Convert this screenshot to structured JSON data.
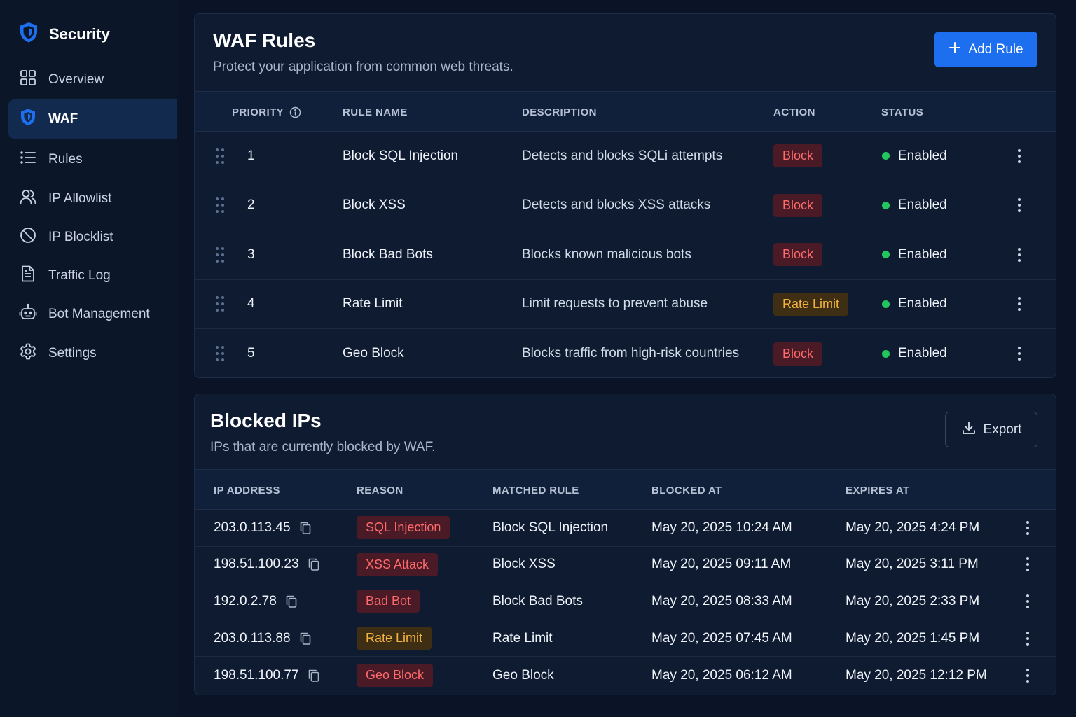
{
  "sidebar": {
    "brand": "Security",
    "items": [
      {
        "label": "Overview",
        "icon": "grid-icon",
        "active": false
      },
      {
        "label": "WAF",
        "icon": "shield-icon",
        "active": true
      },
      {
        "label": "Rules",
        "icon": "list-icon",
        "active": false
      },
      {
        "label": "IP Allowlist",
        "icon": "users-icon",
        "active": false
      },
      {
        "label": "IP Blocklist",
        "icon": "block-icon",
        "active": false
      },
      {
        "label": "Traffic Log",
        "icon": "document-icon",
        "active": false
      },
      {
        "label": "Bot Management",
        "icon": "bot-icon",
        "active": false
      },
      {
        "label": "Settings",
        "icon": "gear-icon",
        "active": false
      }
    ]
  },
  "waf": {
    "title": "WAF Rules",
    "subtitle": "Protect your application from common web threats.",
    "add_button": "Add Rule",
    "columns": {
      "priority": "PRIORITY",
      "rule_name": "RULE NAME",
      "description": "DESCRIPTION",
      "action": "ACTION",
      "status": "STATUS"
    },
    "rows": [
      {
        "priority": "1",
        "name": "Block SQL Injection",
        "description": "Detects and blocks SQLi attempts",
        "action": "Block",
        "action_type": "red",
        "status": "Enabled"
      },
      {
        "priority": "2",
        "name": "Block XSS",
        "description": "Detects and blocks XSS attacks",
        "action": "Block",
        "action_type": "red",
        "status": "Enabled"
      },
      {
        "priority": "3",
        "name": "Block Bad Bots",
        "description": "Blocks known malicious bots",
        "action": "Block",
        "action_type": "red",
        "status": "Enabled"
      },
      {
        "priority": "4",
        "name": "Rate Limit",
        "description": "Limit requests to prevent abuse",
        "action": "Rate Limit",
        "action_type": "amber",
        "status": "Enabled"
      },
      {
        "priority": "5",
        "name": "Geo Block",
        "description": "Blocks traffic from high-risk countries",
        "action": "Block",
        "action_type": "red",
        "status": "Enabled"
      }
    ]
  },
  "blocked": {
    "title": "Blocked IPs",
    "subtitle": "IPs that are currently blocked by WAF.",
    "export_button": "Export",
    "columns": {
      "ip": "IP ADDRESS",
      "reason": "REASON",
      "matched": "MATCHED RULE",
      "blocked_at": "BLOCKED AT",
      "expires_at": "EXPIRES AT"
    },
    "rows": [
      {
        "ip": "203.0.113.45",
        "reason": "SQL Injection",
        "reason_type": "red",
        "matched": "Block SQL Injection",
        "blocked_at": "May 20, 2025 10:24 AM",
        "expires_at": "May 20, 2025 4:24 PM"
      },
      {
        "ip": "198.51.100.23",
        "reason": "XSS Attack",
        "reason_type": "red",
        "matched": "Block XSS",
        "blocked_at": "May 20, 2025 09:11 AM",
        "expires_at": "May 20, 2025 3:11 PM"
      },
      {
        "ip": "192.0.2.78",
        "reason": "Bad Bot",
        "reason_type": "red",
        "matched": "Block Bad Bots",
        "blocked_at": "May 20, 2025 08:33 AM",
        "expires_at": "May 20, 2025 2:33 PM"
      },
      {
        "ip": "203.0.113.88",
        "reason": "Rate Limit",
        "reason_type": "amber",
        "matched": "Rate Limit",
        "blocked_at": "May 20, 2025 07:45 AM",
        "expires_at": "May 20, 2025 1:45 PM"
      },
      {
        "ip": "198.51.100.77",
        "reason": "Geo Block",
        "reason_type": "red",
        "matched": "Geo Block",
        "blocked_at": "May 20, 2025 06:12 AM",
        "expires_at": "May 20, 2025 12:12 PM"
      }
    ]
  },
  "colors": {
    "accent": "#1e6ff0",
    "danger": "#ff6b6b",
    "warning": "#f5b440",
    "success": "#22c55e"
  }
}
